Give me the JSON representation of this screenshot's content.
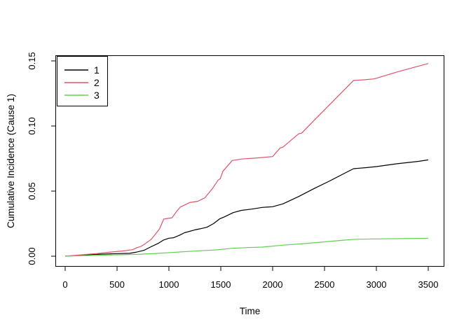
{
  "figure": {
    "background": "#ffffff",
    "axis_color": "#000000"
  },
  "chart_data": {
    "type": "line",
    "title": "",
    "xlabel": "Time",
    "ylabel": "Cumulative Incidence (Cause 1)",
    "xlim": [
      0,
      3500
    ],
    "ylim": [
      0,
      0.15
    ],
    "xticks": [
      0,
      500,
      1000,
      1500,
      2000,
      2500,
      3000,
      3500
    ],
    "yticks": [
      "0.00",
      "0.05",
      "0.10",
      "0.15"
    ],
    "grid": false,
    "legend_position": "topleft",
    "series": [
      {
        "name": "1",
        "color": "#000000",
        "points": [
          [
            0,
            0
          ],
          [
            100,
            0.0005
          ],
          [
            200,
            0.001
          ],
          [
            300,
            0.0014
          ],
          [
            400,
            0.0017
          ],
          [
            500,
            0.002
          ],
          [
            620,
            0.0022
          ],
          [
            680,
            0.003
          ],
          [
            760,
            0.0045
          ],
          [
            820,
            0.007
          ],
          [
            900,
            0.01
          ],
          [
            950,
            0.0125
          ],
          [
            1000,
            0.0138
          ],
          [
            1045,
            0.0142
          ],
          [
            1100,
            0.016
          ],
          [
            1150,
            0.018
          ],
          [
            1250,
            0.0202
          ],
          [
            1300,
            0.021
          ],
          [
            1365,
            0.0222
          ],
          [
            1430,
            0.025
          ],
          [
            1490,
            0.0287
          ],
          [
            1530,
            0.03
          ],
          [
            1620,
            0.0335
          ],
          [
            1700,
            0.0352
          ],
          [
            1800,
            0.0362
          ],
          [
            1900,
            0.0375
          ],
          [
            2000,
            0.038
          ],
          [
            2100,
            0.0402
          ],
          [
            2250,
            0.0458
          ],
          [
            2400,
            0.052
          ],
          [
            2550,
            0.0578
          ],
          [
            2700,
            0.064
          ],
          [
            2780,
            0.0672
          ],
          [
            2900,
            0.068
          ],
          [
            3000,
            0.0688
          ],
          [
            3200,
            0.071
          ],
          [
            3400,
            0.0728
          ],
          [
            3500,
            0.074
          ]
        ]
      },
      {
        "name": "2",
        "color": "#DF536B",
        "points": [
          [
            0,
            0
          ],
          [
            150,
            0.001
          ],
          [
            300,
            0.002
          ],
          [
            420,
            0.003
          ],
          [
            550,
            0.004
          ],
          [
            650,
            0.005
          ],
          [
            690,
            0.0065
          ],
          [
            730,
            0.0075
          ],
          [
            770,
            0.0095
          ],
          [
            830,
            0.013
          ],
          [
            870,
            0.017
          ],
          [
            910,
            0.021
          ],
          [
            950,
            0.0285
          ],
          [
            1030,
            0.0295
          ],
          [
            1070,
            0.034
          ],
          [
            1110,
            0.0378
          ],
          [
            1130,
            0.0385
          ],
          [
            1200,
            0.0412
          ],
          [
            1280,
            0.0422
          ],
          [
            1345,
            0.0448
          ],
          [
            1420,
            0.052
          ],
          [
            1475,
            0.0585
          ],
          [
            1495,
            0.0595
          ],
          [
            1520,
            0.0652
          ],
          [
            1610,
            0.0735
          ],
          [
            1700,
            0.0746
          ],
          [
            1850,
            0.0755
          ],
          [
            2000,
            0.0765
          ],
          [
            2070,
            0.083
          ],
          [
            2100,
            0.0838
          ],
          [
            2250,
            0.094
          ],
          [
            2280,
            0.0945
          ],
          [
            2420,
            0.106
          ],
          [
            2600,
            0.1205
          ],
          [
            2780,
            0.135
          ],
          [
            2880,
            0.1355
          ],
          [
            2980,
            0.1362
          ],
          [
            3200,
            0.1415
          ],
          [
            3500,
            0.148
          ]
        ]
      },
      {
        "name": "3",
        "color": "#61D04F",
        "points": [
          [
            0,
            0
          ],
          [
            250,
            0.0006
          ],
          [
            450,
            0.001
          ],
          [
            700,
            0.0014
          ],
          [
            900,
            0.0022
          ],
          [
            1100,
            0.0032
          ],
          [
            1300,
            0.0042
          ],
          [
            1450,
            0.0048
          ],
          [
            1600,
            0.006
          ],
          [
            1750,
            0.0066
          ],
          [
            1900,
            0.007
          ],
          [
            2100,
            0.0085
          ],
          [
            2300,
            0.0096
          ],
          [
            2500,
            0.011
          ],
          [
            2700,
            0.0124
          ],
          [
            2800,
            0.013
          ],
          [
            3000,
            0.0133
          ],
          [
            3250,
            0.0135
          ],
          [
            3500,
            0.0137
          ]
        ]
      }
    ],
    "legend_labels": [
      "1",
      "2",
      "3"
    ]
  }
}
